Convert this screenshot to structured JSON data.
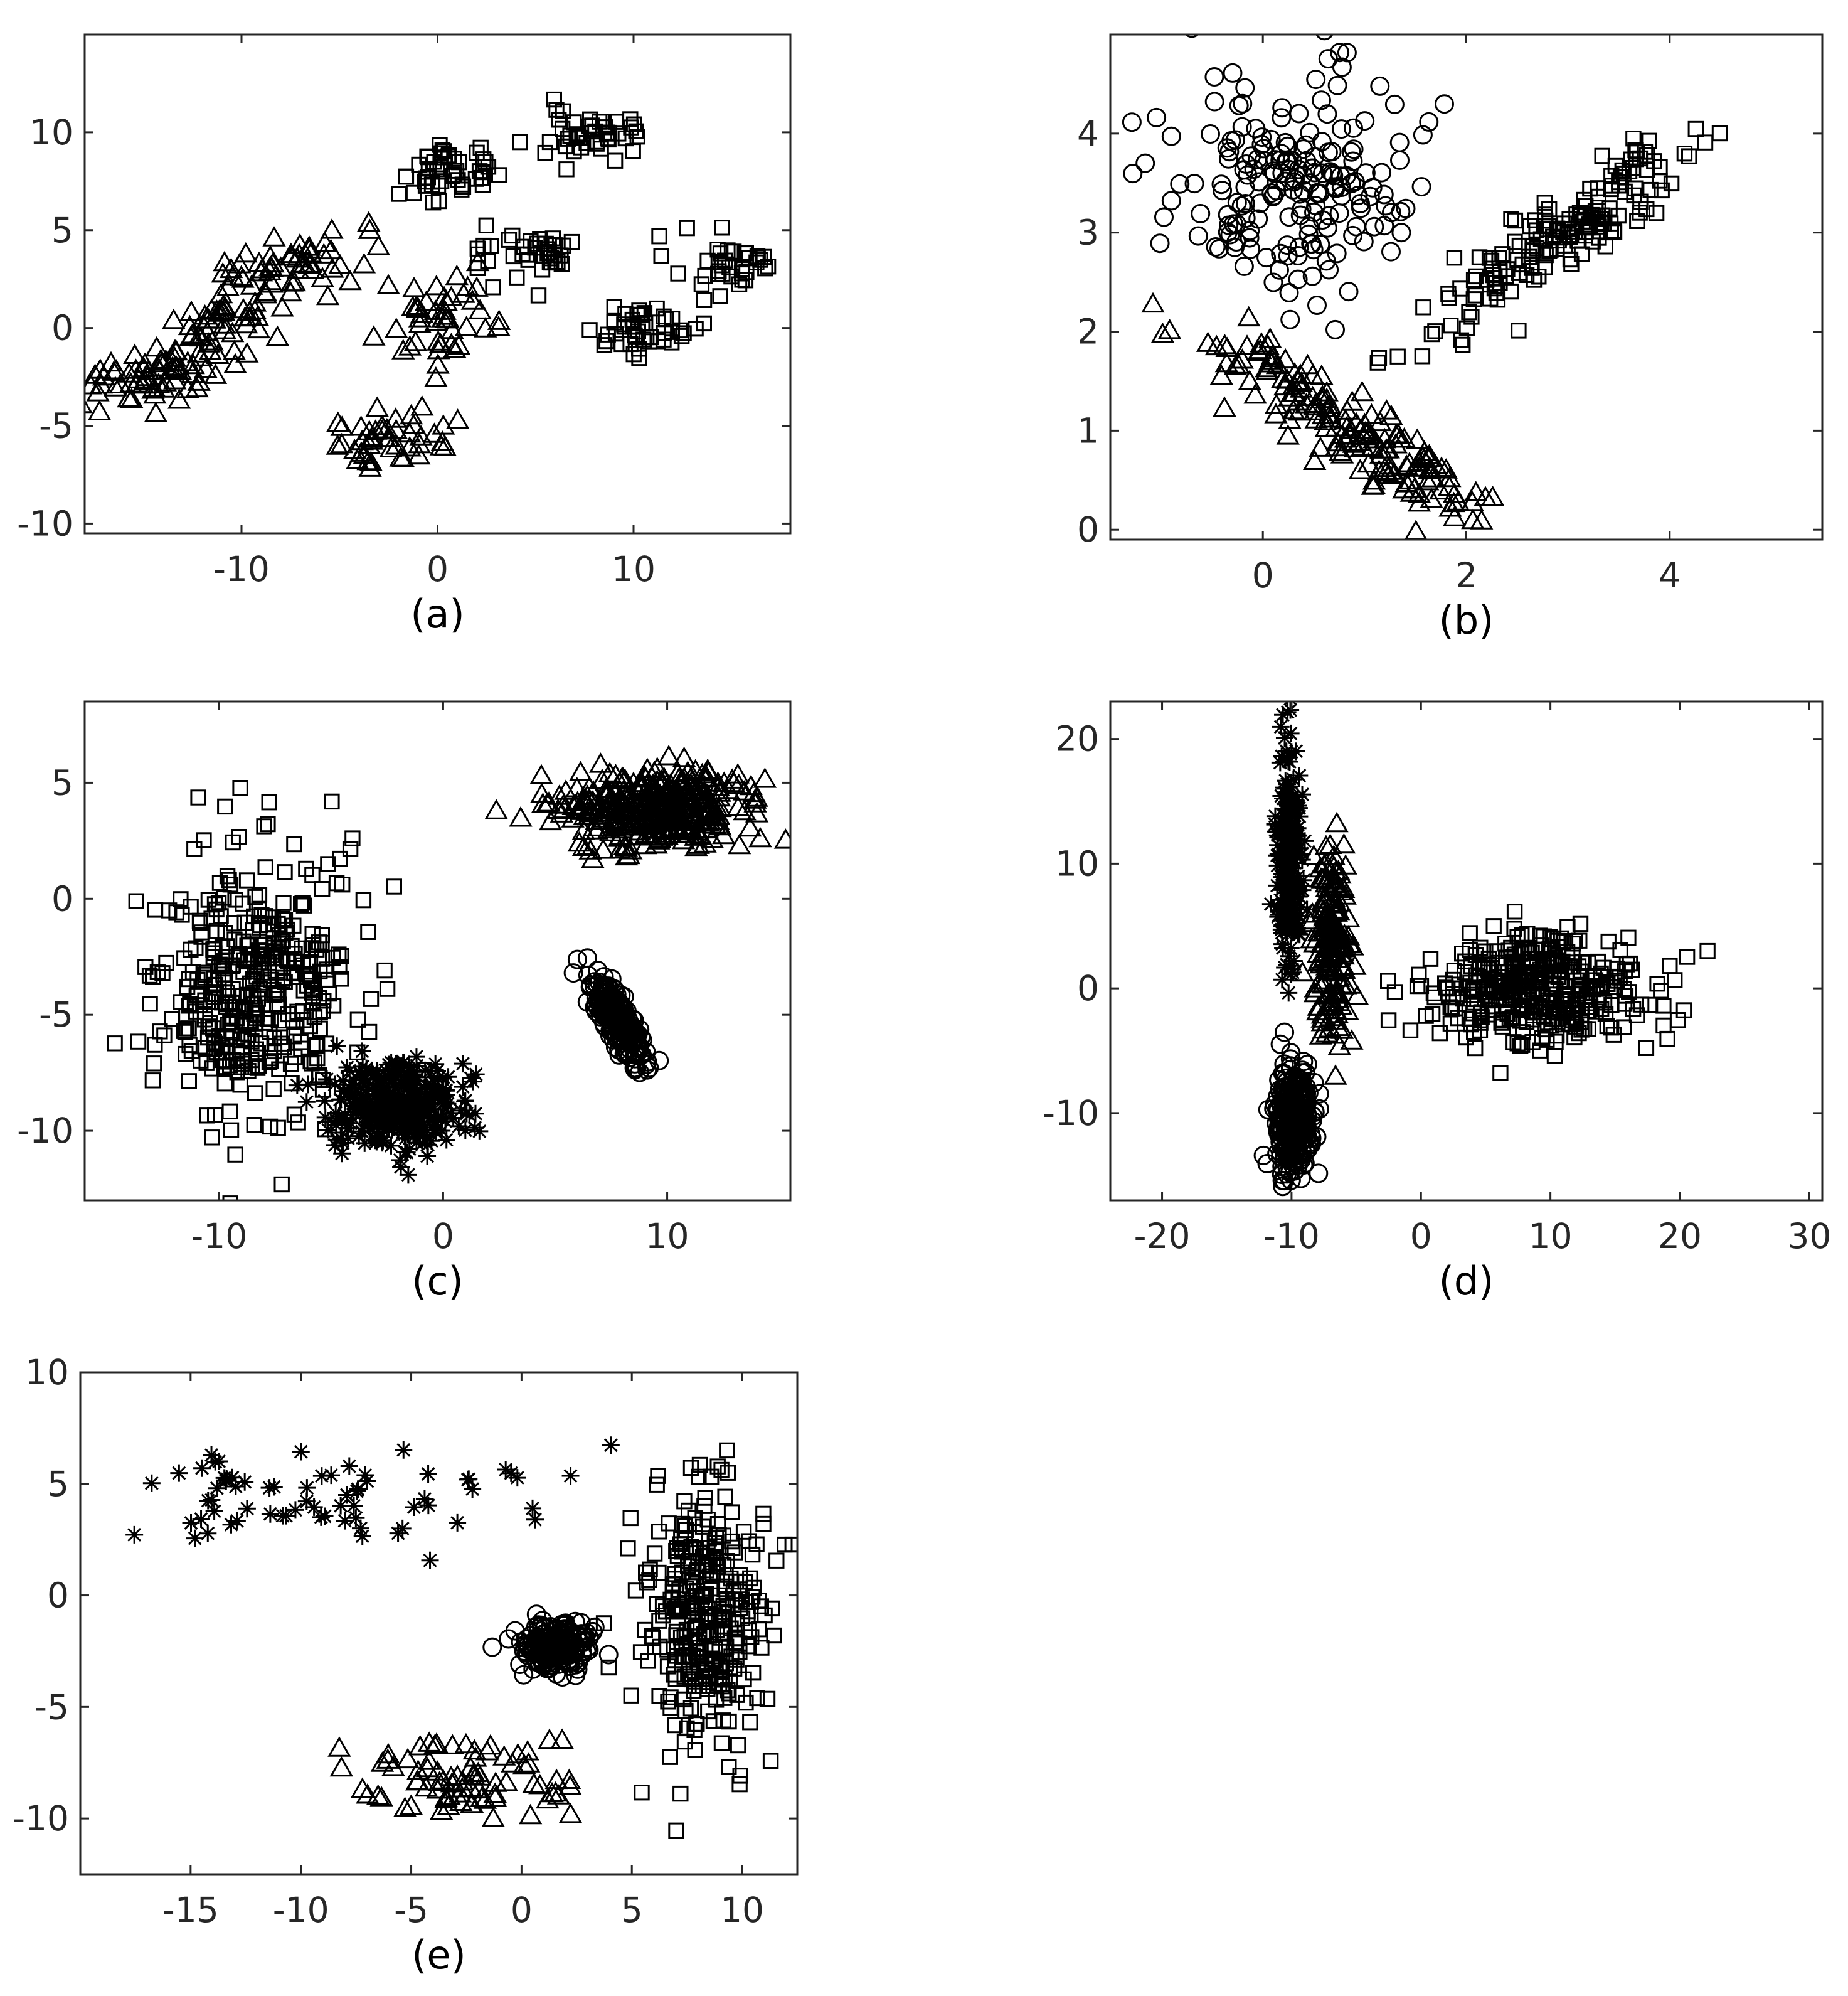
{
  "chart_data": [
    {
      "type": "scatter",
      "caption": "(a)",
      "xlim": [
        -18,
        18
      ],
      "ylim": [
        -10.5,
        15
      ],
      "xticks": [
        -10,
        0,
        10
      ],
      "xtick_labels": [
        "-10",
        "0",
        "10"
      ],
      "yticks": [
        -10,
        -5,
        0,
        5,
        10
      ],
      "ytick_labels": [
        "-10",
        "-5",
        "0",
        "5",
        "10"
      ],
      "series": [
        {
          "marker": "triangle",
          "clusters": [
            {
              "cx": -15,
              "cy": -2.8,
              "sx": 1.6,
              "sy": 0.9,
              "rho": 0.5,
              "n": 60
            },
            {
              "cx": -11,
              "cy": 0.3,
              "sx": 1.3,
              "sy": 0.8,
              "rho": 0.4,
              "n": 45
            },
            {
              "cx": -7.5,
              "cy": 3.0,
              "sx": 1.8,
              "sy": 0.9,
              "rho": 0.3,
              "n": 55
            },
            {
              "cx": -2.5,
              "cy": -5.8,
              "sx": 1.5,
              "sy": 0.7,
              "rho": 0,
              "n": 45
            },
            {
              "cx": 0,
              "cy": 0.3,
              "sx": 1.6,
              "sy": 1.0,
              "rho": 0,
              "n": 45
            }
          ]
        },
        {
          "marker": "square",
          "clusters": [
            {
              "cx": 0,
              "cy": 8.0,
              "sx": 0.9,
              "sy": 0.7,
              "rho": 0,
              "n": 40
            },
            {
              "cx": 2.5,
              "cy": 8.2,
              "sx": 0.3,
              "sy": 0.8,
              "rho": 0,
              "n": 8
            },
            {
              "cx": 4.5,
              "cy": 3.8,
              "sx": 1.3,
              "sy": 0.8,
              "rho": 0,
              "n": 40
            },
            {
              "cx": 7.5,
              "cy": 10.0,
              "sx": 1.4,
              "sy": 0.8,
              "rho": 0,
              "n": 45
            },
            {
              "cx": 10.5,
              "cy": -0.2,
              "sx": 1.5,
              "sy": 0.7,
              "rho": 0,
              "n": 45
            },
            {
              "cx": 15,
              "cy": 3.3,
              "sx": 1.5,
              "sy": 0.7,
              "rho": 0,
              "n": 40
            }
          ]
        }
      ]
    },
    {
      "type": "scatter",
      "caption": "(b)",
      "xlim": [
        -1.5,
        5.5
      ],
      "ylim": [
        -0.1,
        5
      ],
      "xticks": [
        0,
        2,
        4
      ],
      "xtick_labels": [
        "0",
        "2",
        "4"
      ],
      "yticks": [
        0,
        1,
        2,
        3,
        4
      ],
      "ytick_labels": [
        "0",
        "1",
        "2",
        "3",
        "4"
      ],
      "series": [
        {
          "marker": "circle",
          "clusters": [
            {
              "cx": 0.3,
              "cy": 3.5,
              "sx": 0.6,
              "sy": 0.55,
              "rho": 0,
              "n": 190
            }
          ]
        },
        {
          "marker": "triangle",
          "clusters": [
            {
              "cx": 0.8,
              "cy": 1.05,
              "sx": 0.7,
              "sy": 0.5,
              "rho": -0.92,
              "n": 170
            }
          ]
        },
        {
          "marker": "square",
          "clusters": [
            {
              "cx": 3.0,
              "cy": 3.0,
              "sx": 0.6,
              "sy": 0.45,
              "rho": 0.88,
              "n": 170
            }
          ]
        }
      ]
    },
    {
      "type": "scatter",
      "caption": "(c)",
      "xlim": [
        -16,
        15.5
      ],
      "ylim": [
        -13,
        8.5
      ],
      "xticks": [
        -10,
        0,
        10
      ],
      "xtick_labels": [
        "-10",
        "0",
        "10"
      ],
      "yticks": [
        -10,
        -5,
        0,
        5
      ],
      "ytick_labels": [
        "-10",
        "-5",
        "0",
        "5"
      ],
      "series": [
        {
          "marker": "square",
          "clusters": [
            {
              "cx": -8.5,
              "cy": -3.8,
              "sx": 2.2,
              "sy": 2.8,
              "rho": 0,
              "n": 400
            }
          ]
        },
        {
          "marker": "asterisk",
          "clusters": [
            {
              "cx": -2,
              "cy": -9.0,
              "sx": 1.5,
              "sy": 1.0,
              "rho": 0,
              "n": 350
            }
          ]
        },
        {
          "marker": "triangle",
          "clusters": [
            {
              "cx": 9.5,
              "cy": 3.9,
              "sx": 2.2,
              "sy": 0.85,
              "rho": 0,
              "n": 350
            }
          ]
        },
        {
          "marker": "circle",
          "clusters": [
            {
              "cx": 7.8,
              "cy": -5.2,
              "sx": 0.65,
              "sy": 1.0,
              "rho": -0.85,
              "n": 220
            }
          ]
        }
      ]
    },
    {
      "type": "scatter",
      "caption": "(d)",
      "xlim": [
        -24,
        31
      ],
      "ylim": [
        -17,
        23
      ],
      "xticks": [
        -20,
        -10,
        0,
        10,
        20,
        30
      ],
      "xtick_labels": [
        "-20",
        "-10",
        "0",
        "10",
        "20",
        "30"
      ],
      "yticks": [
        -10,
        0,
        10,
        20
      ],
      "ytick_labels": [
        "-10",
        "0",
        "10",
        "20"
      ],
      "series": [
        {
          "marker": "asterisk",
          "clusters": [
            {
              "cx": -10.2,
              "cy": 10.0,
              "sx": 0.45,
              "sy": 4.5,
              "rho": 0,
              "n": 250
            }
          ]
        },
        {
          "marker": "triangle",
          "clusters": [
            {
              "cx": -6.8,
              "cy": 4.0,
              "sx": 0.7,
              "sy": 4.0,
              "rho": 0,
              "n": 180
            }
          ]
        },
        {
          "marker": "circle",
          "clusters": [
            {
              "cx": -9.8,
              "cy": -10.5,
              "sx": 0.7,
              "sy": 2.2,
              "rho": 0,
              "n": 280
            }
          ]
        },
        {
          "marker": "square",
          "clusters": [
            {
              "cx": 9,
              "cy": -0.2,
              "sx": 4.2,
              "sy": 2.2,
              "rho": 0,
              "n": 380
            }
          ]
        }
      ]
    },
    {
      "type": "scatter",
      "caption": "(e)",
      "xlim": [
        -20,
        12.5
      ],
      "ylim": [
        -12.5,
        10
      ],
      "xticks": [
        -15,
        -10,
        -5,
        0,
        5,
        10
      ],
      "xtick_labels": [
        "-15",
        "-10",
        "-5",
        "0",
        "5",
        "10"
      ],
      "yticks": [
        -10,
        -5,
        0,
        5,
        10
      ],
      "ytick_labels": [
        "-10",
        "-5",
        "0",
        "5",
        "10"
      ],
      "series": [
        {
          "marker": "asterisk",
          "clusters": [
            {
              "cx": -9,
              "cy": 4.5,
              "sx": 5.0,
              "sy": 1.1,
              "rho": 0,
              "n": 70
            }
          ]
        },
        {
          "marker": "circle",
          "clusters": [
            {
              "cx": 1.5,
              "cy": -2.3,
              "sx": 0.8,
              "sy": 0.55,
              "rho": 0,
              "n": 180
            }
          ]
        },
        {
          "marker": "square",
          "clusters": [
            {
              "cx": 8.3,
              "cy": -1.0,
              "sx": 1.4,
              "sy": 2.8,
              "rho": 0,
              "n": 320
            }
          ]
        },
        {
          "marker": "triangle",
          "clusters": [
            {
              "cx": -2.5,
              "cy": -8.3,
              "sx": 2.5,
              "sy": 0.9,
              "rho": 0,
              "n": 80
            }
          ]
        }
      ]
    }
  ]
}
